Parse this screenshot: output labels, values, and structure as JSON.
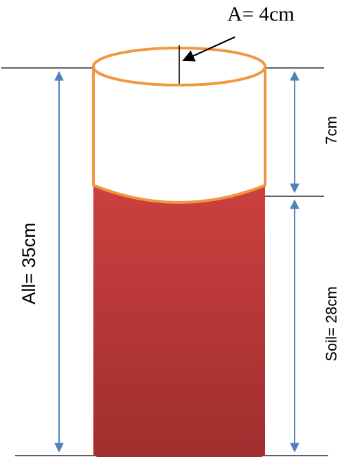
{
  "labels": {
    "radius": "A= 4cm",
    "total_height": "All= 35cm",
    "air_gap": "7cm",
    "soil_height": "Soil= 28cm"
  },
  "colors": {
    "cylinder_outline": "#f0973f",
    "soil_top": "#cc4040",
    "soil_bottom": "#9e2d2d",
    "dimension_arrow": "#4f81bd",
    "reference_line": "#000000"
  }
}
